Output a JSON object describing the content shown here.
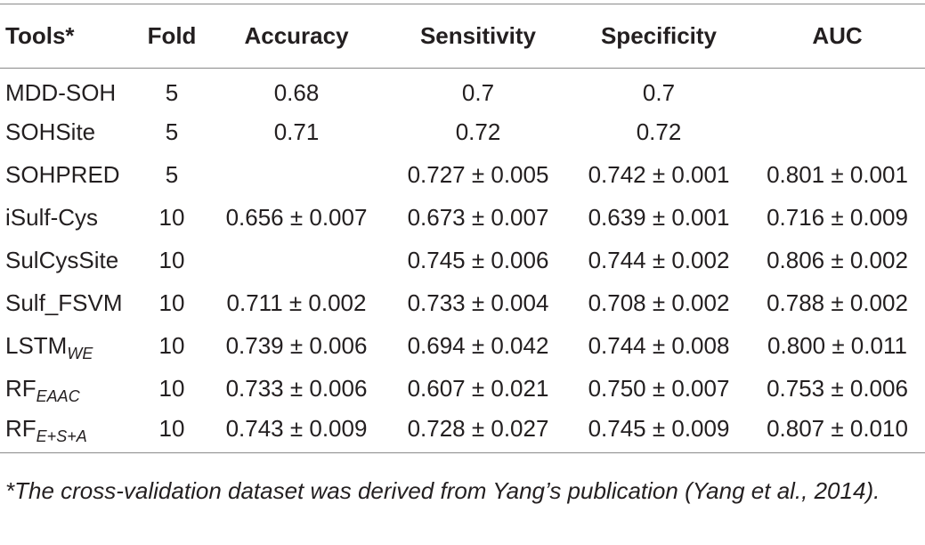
{
  "table": {
    "headers": [
      "Tools*",
      "Fold",
      "Accuracy",
      "Sensitivity",
      "Specificity",
      "AUC"
    ],
    "rows": [
      {
        "tool": "MDD-SOH",
        "tool_sub": "",
        "fold": "5",
        "accuracy": "0.68",
        "sensitivity": "0.7",
        "specificity": "0.7",
        "auc": ""
      },
      {
        "tool": "SOHSite",
        "tool_sub": "",
        "fold": "5",
        "accuracy": "0.71",
        "sensitivity": "0.72",
        "specificity": "0.72",
        "auc": ""
      },
      {
        "tool": "SOHPRED",
        "tool_sub": "",
        "fold": "5",
        "accuracy": "",
        "sensitivity": "0.727 ± 0.005",
        "specificity": "0.742 ± 0.001",
        "auc": "0.801 ± 0.001"
      },
      {
        "tool": "iSulf-Cys",
        "tool_sub": "",
        "fold": "10",
        "accuracy": "0.656 ± 0.007",
        "sensitivity": "0.673 ± 0.007",
        "specificity": "0.639 ± 0.001",
        "auc": "0.716 ± 0.009"
      },
      {
        "tool": "SulCysSite",
        "tool_sub": "",
        "fold": "10",
        "accuracy": "",
        "sensitivity": "0.745 ± 0.006",
        "specificity": "0.744 ± 0.002",
        "auc": "0.806 ± 0.002"
      },
      {
        "tool": "Sulf_FSVM",
        "tool_sub": "",
        "fold": "10",
        "accuracy": "0.711 ± 0.002",
        "sensitivity": "0.733 ± 0.004",
        "specificity": "0.708 ± 0.002",
        "auc": "0.788 ± 0.002"
      },
      {
        "tool": "LSTM",
        "tool_sub": "WE",
        "fold": "10",
        "accuracy": "0.739 ± 0.006",
        "sensitivity": "0.694 ± 0.042",
        "specificity": "0.744 ± 0.008",
        "auc": "0.800 ± 0.011"
      },
      {
        "tool": "RF",
        "tool_sub": "EAAC",
        "fold": "10",
        "accuracy": "0.733 ± 0.006",
        "sensitivity": "0.607 ± 0.021",
        "specificity": "0.750 ± 0.007",
        "auc": "0.753 ± 0.006"
      },
      {
        "tool": "RF",
        "tool_sub": "E+S+A",
        "fold": "10",
        "accuracy": "0.743 ± 0.009",
        "sensitivity": "0.728 ± 0.027",
        "specificity": "0.745 ± 0.009",
        "auc": "0.807 ± 0.010"
      }
    ]
  },
  "footnote": {
    "text": "*The cross-validation dataset was derived from Yang’s publication",
    "open_paren": "(",
    "ref": "Yang et al., 2014",
    "close": ")."
  }
}
